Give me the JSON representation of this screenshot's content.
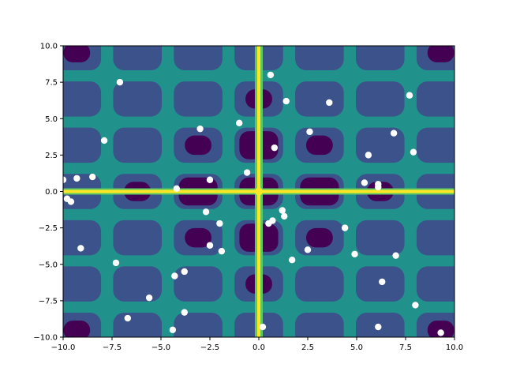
{
  "chart_data": {
    "type": "scatter",
    "title": "",
    "xlabel": "",
    "ylabel": "",
    "xlim": [
      -10,
      10
    ],
    "ylim": [
      -10,
      10
    ],
    "grid": false,
    "x_ticks": [
      "−10.0",
      "−7.5",
      "−5.0",
      "−2.5",
      "0.0",
      "2.5",
      "5.0",
      "7.5",
      "10.0"
    ],
    "y_ticks": [
      "−10.0",
      "−7.5",
      "−5.0",
      "−2.5",
      "0.0",
      "2.5",
      "5.0",
      "7.5",
      "10.0"
    ],
    "background": {
      "kind": "filled-contour",
      "colormap": "viridis",
      "colors": [
        "#440154",
        "#3b528b",
        "#21918c",
        "#5ec962",
        "#fde725"
      ]
    },
    "marker_color": "#ffffff",
    "points": [
      {
        "x": -7.1,
        "y": 7.5
      },
      {
        "x": 0.6,
        "y": 8.0
      },
      {
        "x": 1.4,
        "y": 6.2
      },
      {
        "x": 3.6,
        "y": 6.1
      },
      {
        "x": 7.7,
        "y": 6.6
      },
      {
        "x": -3.0,
        "y": 4.3
      },
      {
        "x": -1.0,
        "y": 4.7
      },
      {
        "x": 2.6,
        "y": 4.1
      },
      {
        "x": 6.9,
        "y": 4.0
      },
      {
        "x": -7.9,
        "y": 3.5
      },
      {
        "x": 0.8,
        "y": 3.0
      },
      {
        "x": 5.6,
        "y": 2.5
      },
      {
        "x": 7.9,
        "y": 2.7
      },
      {
        "x": -10.0,
        "y": 0.8
      },
      {
        "x": -9.3,
        "y": 0.9
      },
      {
        "x": -8.5,
        "y": 1.0
      },
      {
        "x": -2.5,
        "y": 0.8
      },
      {
        "x": -0.6,
        "y": 1.3
      },
      {
        "x": 5.4,
        "y": 0.6
      },
      {
        "x": 6.1,
        "y": 0.5
      },
      {
        "x": 6.1,
        "y": 0.3
      },
      {
        "x": -4.2,
        "y": 0.2
      },
      {
        "x": -9.8,
        "y": -0.5
      },
      {
        "x": -9.6,
        "y": -0.7
      },
      {
        "x": -2.7,
        "y": -1.4
      },
      {
        "x": -2.0,
        "y": -2.2
      },
      {
        "x": 1.2,
        "y": -1.3
      },
      {
        "x": 1.3,
        "y": -1.7
      },
      {
        "x": 0.7,
        "y": -2.0
      },
      {
        "x": 0.5,
        "y": -2.2
      },
      {
        "x": 4.4,
        "y": -2.5
      },
      {
        "x": -9.1,
        "y": -3.9
      },
      {
        "x": -2.5,
        "y": -3.7
      },
      {
        "x": -1.9,
        "y": -4.1
      },
      {
        "x": 2.5,
        "y": -4.0
      },
      {
        "x": 4.9,
        "y": -4.3
      },
      {
        "x": 7.0,
        "y": -4.4
      },
      {
        "x": -7.3,
        "y": -4.9
      },
      {
        "x": 1.7,
        "y": -4.7
      },
      {
        "x": -3.8,
        "y": -5.5
      },
      {
        "x": -4.3,
        "y": -5.8
      },
      {
        "x": 6.3,
        "y": -6.2
      },
      {
        "x": -5.6,
        "y": -7.3
      },
      {
        "x": 8.0,
        "y": -7.8
      },
      {
        "x": -3.8,
        "y": -8.3
      },
      {
        "x": -6.7,
        "y": -8.7
      },
      {
        "x": -4.4,
        "y": -9.5
      },
      {
        "x": 0.2,
        "y": -9.3
      },
      {
        "x": 6.1,
        "y": -9.3
      },
      {
        "x": 9.3,
        "y": -9.7
      }
    ]
  }
}
